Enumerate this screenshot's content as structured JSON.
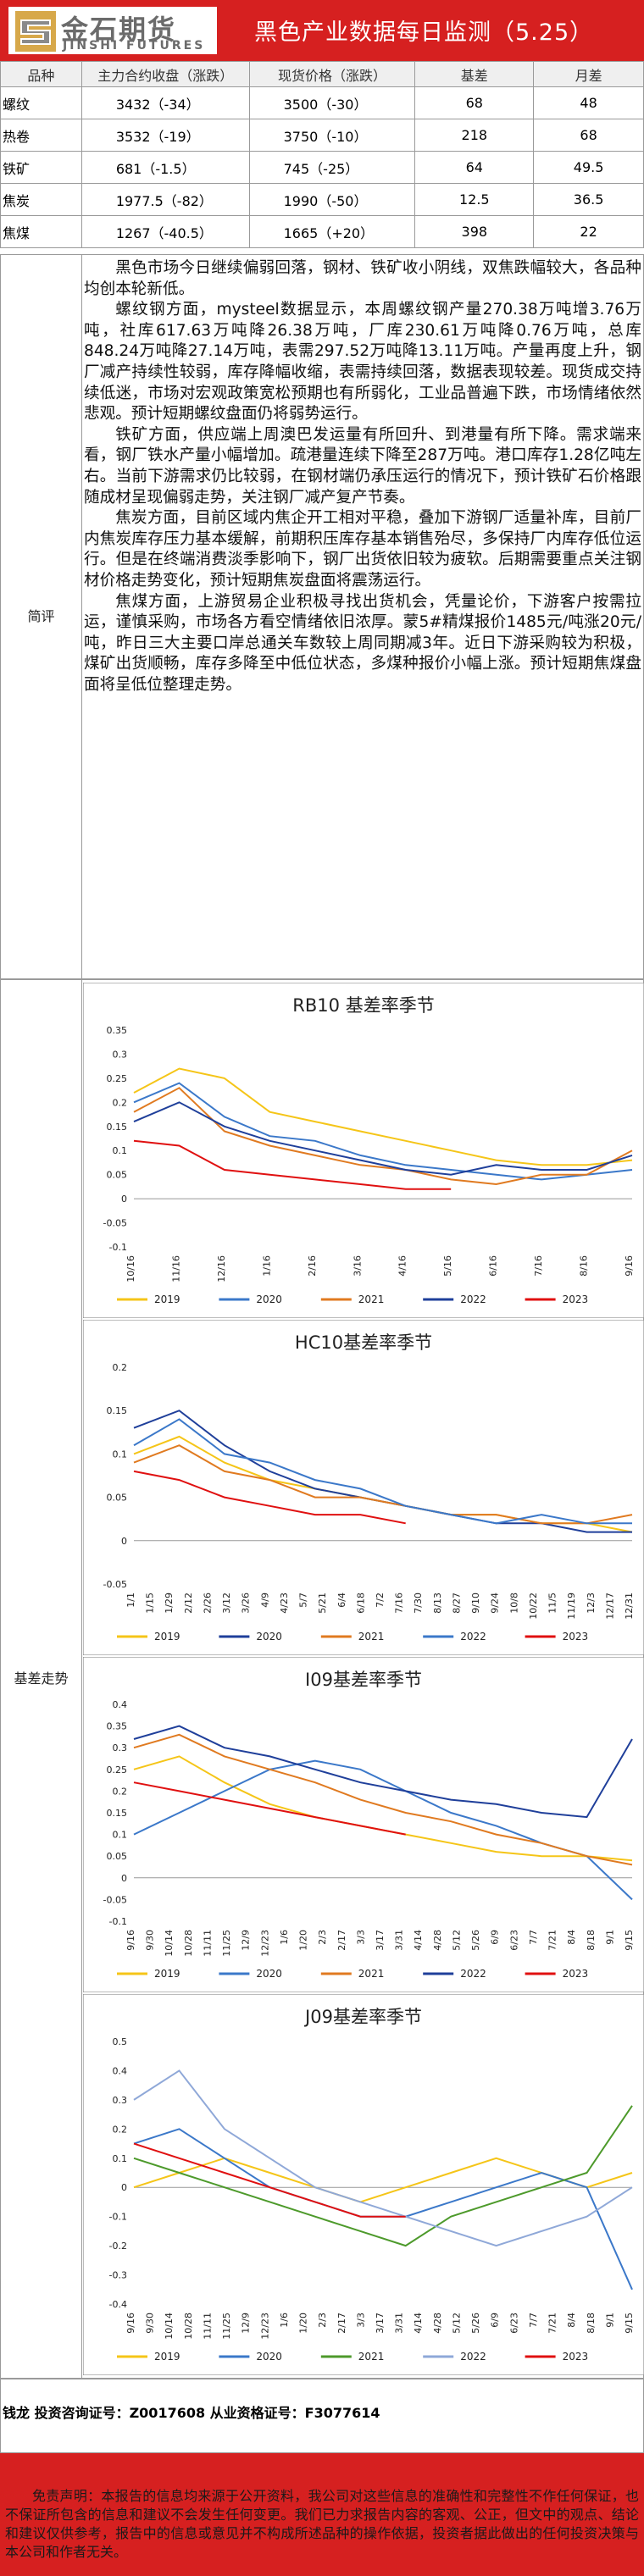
{
  "header": {
    "brand_cn": "金石期货",
    "brand_en": "JINSHI FUTURES",
    "title": "黑色产业数据每日监测（5.25）"
  },
  "table": {
    "headers": [
      "品种",
      "主力合约收盘（涨跌）",
      "现货价格（涨跌）",
      "基差",
      "月差"
    ],
    "rows": [
      {
        "product": "螺纹",
        "futures": "3432（-34）",
        "spot": "3500（-30）",
        "basis": "68",
        "spread": "48"
      },
      {
        "product": "热卷",
        "futures": "3532（-19）",
        "spot": "3750（-10）",
        "basis": "218",
        "spread": "68"
      },
      {
        "product": "铁矿",
        "futures": "681（-1.5）",
        "spot": "745（-25）",
        "basis": "64",
        "spread": "49.5"
      },
      {
        "product": "焦炭",
        "futures": "1977.5（-82）",
        "spot": "1990（-50）",
        "basis": "12.5",
        "spread": "36.5"
      },
      {
        "product": "焦煤",
        "futures": "1267（-40.5）",
        "spot": "1665（+20）",
        "basis": "398",
        "spread": "22"
      }
    ]
  },
  "commentary": {
    "label": "简评",
    "paragraphs": [
      "黑色市场今日继续偏弱回落，钢材、铁矿收小阴线，双焦跌幅较大，各品种均创本轮新低。",
      "螺纹钢方面，mysteel数据显示，本周螺纹钢产量270.38万吨增3.76万吨，社库617.63万吨降26.38万吨，厂库230.61万吨降0.76万吨，总库848.24万吨降27.14万吨，表需297.52万吨降13.11万吨。产量再度上升，钢厂减产持续性较弱，库存降幅收缩，表需持续回落，数据表现较差。现货成交持续低迷，市场对宏观政策宽松预期也有所弱化，工业品普遍下跌，市场情绪依然悲观。预计短期螺纹盘面仍将弱势运行。",
      "铁矿方面，供应端上周澳巴发运量有所回升、到港量有所下降。需求端来看，钢厂铁水产量小幅增加。疏港量连续下降至287万吨。港口库存1.28亿吨左右。当前下游需求仍比较弱，在钢材端仍承压运行的情况下，预计铁矿石价格跟随成材呈现偏弱走势，关注钢厂减产复产节奏。",
      "焦炭方面，目前区域内焦企开工相对平稳，叠加下游钢厂适量补库，目前厂内焦炭库存压力基本缓解，前期积压库存基本销售殆尽，多保持厂内库存低位运行。但是在终端消费淡季影响下，钢厂出货依旧较为疲软。后期需要重点关注钢材价格走势变化，预计短期焦炭盘面将震荡运行。",
      "焦煤方面，上游贸易企业积极寻找出货机会，凭量论价，下游客户按需拉运，谨慎采购，市场各方看空情绪依旧浓厚。蒙5#精煤报价1485元/吨涨20元/吨，昨日三大主要口岸总通关车数较上周同期减3年。近日下游采购较为积极，煤矿出货顺畅，库存多降至中低位状态，多煤种报价小幅上涨。预计短期焦煤盘面将呈低位整理走势。"
    ]
  },
  "basis_section": {
    "label": "基差走势"
  },
  "colors": {
    "brand_red": "#d62020",
    "y2019": "#f5c518",
    "y2020": "#3b78c9",
    "y2021": "#e07a20",
    "y2022": "#1f3f9a",
    "y2023": "#e01010",
    "y2021_j09": "#4d9a2b",
    "y2022_j09": "#8fa8d8"
  },
  "chart_data": [
    {
      "type": "line",
      "title": "RB10 基差率季节",
      "yticks": [
        "0.35",
        "0.3",
        "0.25",
        "0.2",
        "0.15",
        "0.1",
        "0.05",
        "0",
        "-0.05",
        "-0.1"
      ],
      "ylim": [
        -0.1,
        0.35
      ],
      "xticks": [
        "10/16",
        "11/16",
        "12/16",
        "1/16",
        "2/16",
        "3/16",
        "4/16",
        "5/16",
        "6/16",
        "7/16",
        "8/16",
        "9/16"
      ],
      "series": [
        {
          "name": "2019",
          "values": [
            0.22,
            0.27,
            0.25,
            0.18,
            0.16,
            0.14,
            0.12,
            0.1,
            0.08,
            0.07,
            0.07,
            0.08
          ]
        },
        {
          "name": "2020",
          "values": [
            0.2,
            0.24,
            0.17,
            0.13,
            0.12,
            0.09,
            0.07,
            0.06,
            0.05,
            0.04,
            0.05,
            0.06
          ]
        },
        {
          "name": "2021",
          "values": [
            0.18,
            0.23,
            0.14,
            0.11,
            0.09,
            0.07,
            0.06,
            0.04,
            0.03,
            0.05,
            0.05,
            0.1
          ]
        },
        {
          "name": "2022",
          "values": [
            0.16,
            0.2,
            0.15,
            0.12,
            0.1,
            0.08,
            0.06,
            0.05,
            0.07,
            0.06,
            0.06,
            0.09
          ]
        },
        {
          "name": "2023",
          "values": [
            0.12,
            0.11,
            0.06,
            0.05,
            0.04,
            0.03,
            0.02,
            0.02
          ]
        }
      ]
    },
    {
      "type": "line",
      "title": "HC10基差率季节",
      "yticks": [
        "0.2",
        "0.15",
        "0.1",
        "0.05",
        "0",
        "-0.05"
      ],
      "ylim": [
        -0.05,
        0.2
      ],
      "xticks": [
        "1/1",
        "1/15",
        "1/29",
        "2/12",
        "2/26",
        "3/12",
        "3/26",
        "4/9",
        "4/23",
        "5/7",
        "5/21",
        "6/4",
        "6/18",
        "7/2",
        "7/16",
        "7/30",
        "8/13",
        "8/27",
        "9/10",
        "9/24",
        "10/8",
        "10/22",
        "11/5",
        "11/19",
        "12/3",
        "12/17",
        "12/31"
      ],
      "series": [
        {
          "name": "2019",
          "values": [
            0.1,
            0.12,
            0.09,
            0.07,
            0.06,
            0.05,
            0.04,
            0.03,
            0.03,
            0.02,
            0.02,
            0.01
          ]
        },
        {
          "name": "2020",
          "values": [
            0.13,
            0.15,
            0.11,
            0.08,
            0.06,
            0.05,
            0.04,
            0.03,
            0.02,
            0.02,
            0.01,
            0.01
          ]
        },
        {
          "name": "2021",
          "values": [
            0.09,
            0.11,
            0.08,
            0.07,
            0.05,
            0.05,
            0.04,
            0.03,
            0.03,
            0.02,
            0.02,
            0.03
          ]
        },
        {
          "name": "2022",
          "values": [
            0.11,
            0.14,
            0.1,
            0.09,
            0.07,
            0.06,
            0.04,
            0.03,
            0.02,
            0.03,
            0.02,
            0.02
          ]
        },
        {
          "name": "2023",
          "values": [
            0.08,
            0.07,
            0.05,
            0.04,
            0.03,
            0.03,
            0.02
          ]
        }
      ]
    },
    {
      "type": "line",
      "title": "I09基差率季节",
      "yticks": [
        "0.4",
        "0.35",
        "0.3",
        "0.25",
        "0.2",
        "0.15",
        "0.1",
        "0.05",
        "0",
        "-0.05",
        "-0.1"
      ],
      "ylim": [
        -0.1,
        0.4
      ],
      "xticks": [
        "9/16",
        "9/30",
        "10/14",
        "10/28",
        "11/11",
        "11/25",
        "12/9",
        "12/23",
        "1/6",
        "1/20",
        "2/3",
        "2/17",
        "3/3",
        "3/17",
        "3/31",
        "4/14",
        "4/28",
        "5/12",
        "5/26",
        "6/9",
        "6/23",
        "7/7",
        "7/21",
        "8/4",
        "8/18",
        "9/1",
        "9/15"
      ],
      "series": [
        {
          "name": "2019",
          "values": [
            0.25,
            0.28,
            0.22,
            0.17,
            0.14,
            0.12,
            0.1,
            0.08,
            0.06,
            0.05,
            0.05,
            0.04
          ]
        },
        {
          "name": "2020",
          "values": [
            0.1,
            0.15,
            0.2,
            0.25,
            0.27,
            0.25,
            0.2,
            0.15,
            0.12,
            0.08,
            0.05,
            -0.05
          ]
        },
        {
          "name": "2021",
          "values": [
            0.3,
            0.33,
            0.28,
            0.25,
            0.22,
            0.18,
            0.15,
            0.13,
            0.1,
            0.08,
            0.05,
            0.03
          ]
        },
        {
          "name": "2022",
          "values": [
            0.32,
            0.35,
            0.3,
            0.28,
            0.25,
            0.22,
            0.2,
            0.18,
            0.17,
            0.15,
            0.14,
            0.32
          ]
        },
        {
          "name": "2023",
          "values": [
            0.22,
            0.2,
            0.18,
            0.16,
            0.14,
            0.12,
            0.1
          ]
        }
      ]
    },
    {
      "type": "line",
      "title": "J09基差率季节",
      "yticks": [
        "0.5",
        "0.4",
        "0.3",
        "0.2",
        "0.1",
        "0",
        "-0.1",
        "-0.2",
        "-0.3",
        "-0.4"
      ],
      "ylim": [
        -0.4,
        0.5
      ],
      "xticks": [
        "9/16",
        "9/30",
        "10/14",
        "10/28",
        "11/11",
        "11/25",
        "12/9",
        "12/23",
        "1/6",
        "1/20",
        "2/3",
        "2/17",
        "3/3",
        "3/17",
        "3/31",
        "4/14",
        "4/28",
        "5/12",
        "5/26",
        "6/9",
        "6/23",
        "7/7",
        "7/21",
        "8/4",
        "8/18",
        "9/1",
        "9/15"
      ],
      "series": [
        {
          "name": "2019",
          "values": [
            0.0,
            0.05,
            0.1,
            0.05,
            0.0,
            -0.05,
            0.0,
            0.05,
            0.1,
            0.05,
            0.0,
            0.05
          ]
        },
        {
          "name": "2020",
          "values": [
            0.15,
            0.2,
            0.1,
            0.0,
            -0.05,
            -0.1,
            -0.1,
            -0.05,
            0.0,
            0.05,
            0.0,
            -0.35
          ]
        },
        {
          "name": "2021",
          "values": [
            0.1,
            0.05,
            0.0,
            -0.05,
            -0.1,
            -0.15,
            -0.2,
            -0.1,
            -0.05,
            0.0,
            0.05,
            0.28
          ]
        },
        {
          "name": "2022",
          "values": [
            0.3,
            0.4,
            0.2,
            0.1,
            0.0,
            -0.05,
            -0.1,
            -0.15,
            -0.2,
            -0.15,
            -0.1,
            0.0
          ]
        },
        {
          "name": "2023",
          "values": [
            0.15,
            0.1,
            0.05,
            0.0,
            -0.05,
            -0.1,
            -0.1
          ]
        }
      ]
    }
  ],
  "footer": {
    "analyst": "钱龙 投资咨询证号：Z0017608 从业资格证号：F3077614",
    "disclaimer": "免责声明：本报告的信息均来源于公开资料，我公司对这些信息的准确性和完整性不作任何保证，也不保证所包含的信息和建议不会发生任何变更。我们已力求报告内容的客观、公正，但文中的观点、结论和建议仅供参考，报告中的信息或意见并不构成所述品种的操作依据，投资者据此做出的任何投资决策与本公司和作者无关。"
  }
}
